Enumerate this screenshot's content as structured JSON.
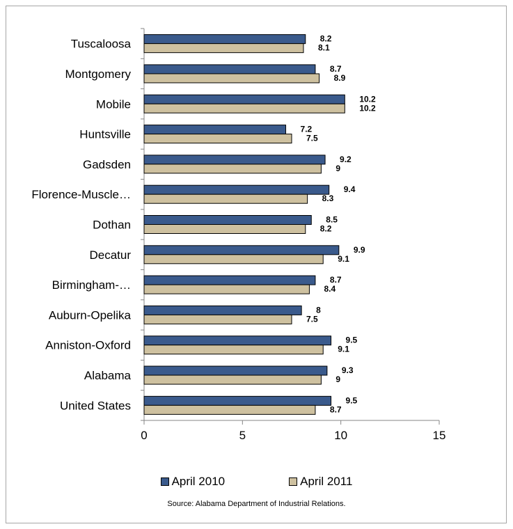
{
  "chart_data": {
    "type": "bar",
    "orientation": "horizontal",
    "categories": [
      "Tuscaloosa",
      "Montgomery",
      "Mobile",
      "Huntsville",
      "Gadsden",
      "Florence-Muscle…",
      "Dothan",
      "Decatur",
      "Birmingham-…",
      "Auburn-Opelika",
      "Anniston-Oxford",
      "Alabama",
      "United States"
    ],
    "series": [
      {
        "name": "April 2010",
        "color": "#3a5a8c",
        "values": [
          8.2,
          8.7,
          10.2,
          7.2,
          9.2,
          9.4,
          8.5,
          9.9,
          8.7,
          8,
          9.5,
          9.3,
          9.5
        ]
      },
      {
        "name": "April 2011",
        "color": "#cec1a0",
        "values": [
          8.1,
          8.9,
          10.2,
          7.5,
          9,
          8.3,
          8.2,
          9.1,
          8.4,
          7.5,
          9.1,
          9,
          8.7
        ]
      }
    ],
    "xlim": [
      0,
      15
    ],
    "xticks": [
      0,
      5,
      10,
      15
    ],
    "grid": false,
    "legend_position": "bottom",
    "source": "Source:  Alabama Department of Industrial Relations."
  }
}
